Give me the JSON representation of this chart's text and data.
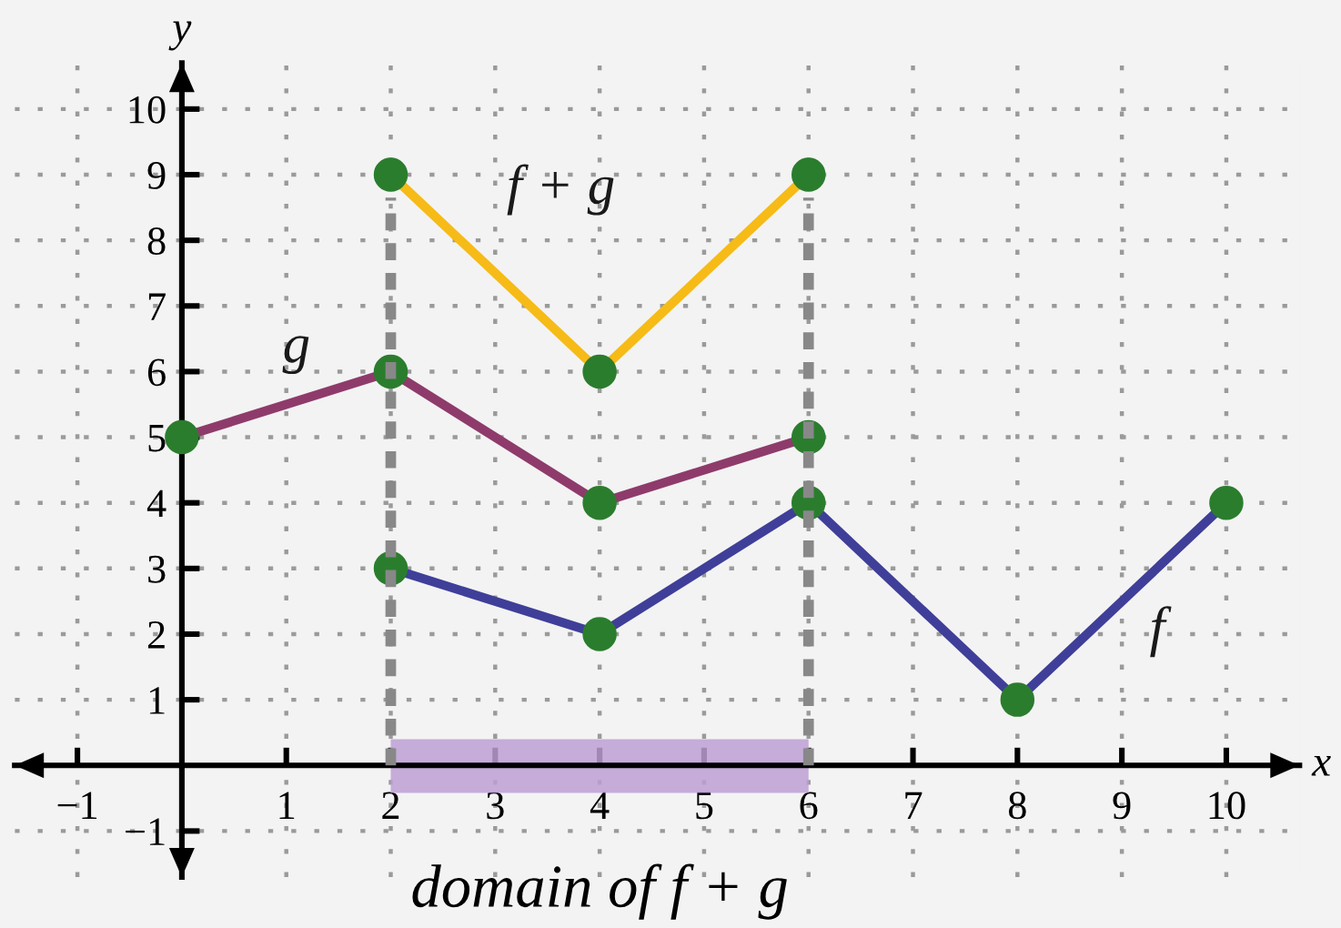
{
  "chart_data": {
    "type": "line",
    "xlabel": "x",
    "ylabel": "y",
    "xlim": [
      -1.6,
      10.7
    ],
    "ylim": [
      -1.7,
      10.7
    ],
    "xticks": [
      {
        "value": -1,
        "label": "−1"
      },
      1,
      2,
      3,
      4,
      5,
      6,
      7,
      8,
      9,
      10
    ],
    "yticks": [
      {
        "value": -1,
        "label": "−1"
      },
      1,
      2,
      3,
      4,
      5,
      6,
      7,
      8,
      9,
      10
    ],
    "grid": true,
    "legend": false,
    "marker": "circle",
    "line_style": "solid",
    "series": [
      {
        "name": "f",
        "color": "#3f3f99",
        "x": [
          2,
          4,
          6,
          8,
          10
        ],
        "values": [
          3,
          2,
          4,
          1,
          4
        ]
      },
      {
        "name": "g",
        "color": "#8e3b6b",
        "x": [
          0,
          2,
          4,
          6
        ],
        "values": [
          5,
          6,
          4,
          5
        ]
      },
      {
        "name": "f + g",
        "color": "#f6bb16",
        "x": [
          2,
          4,
          6
        ],
        "values": [
          9,
          6,
          9
        ]
      }
    ],
    "ref_lines": [
      {
        "axis": "x",
        "value": 2,
        "color": "#888888",
        "line_style": "dashed"
      },
      {
        "axis": "x",
        "value": 6,
        "color": "#888888",
        "line_style": "dashed"
      }
    ],
    "bands": [
      {
        "axis": "x",
        "from": 2,
        "to": 6,
        "label": "domain of f + g",
        "color": "#bc9fd3"
      }
    ]
  }
}
